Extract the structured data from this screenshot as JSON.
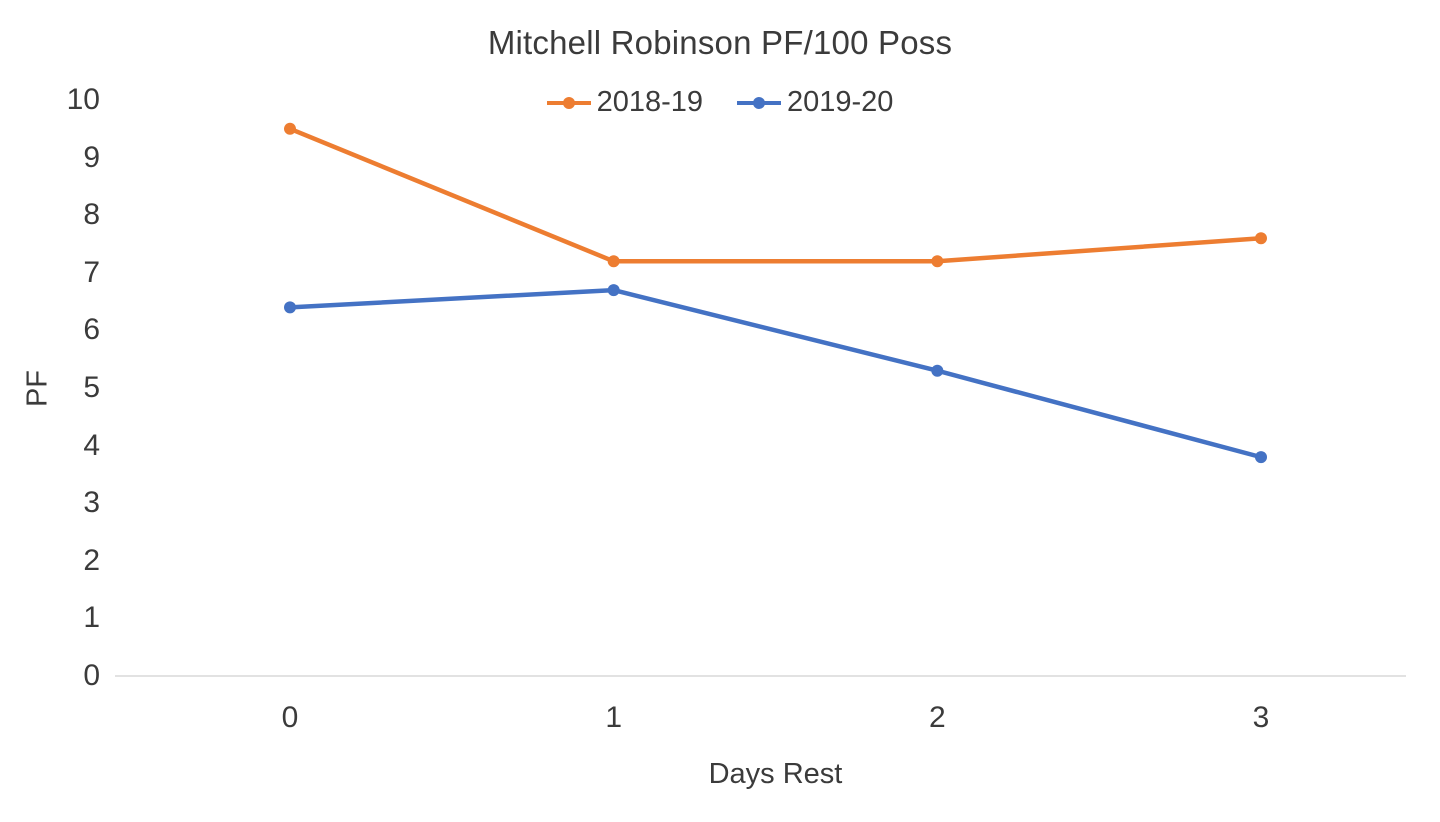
{
  "chart_data": {
    "type": "line",
    "title": "Mitchell Robinson PF/100 Poss",
    "xlabel": "Days Rest",
    "ylabel": "PF",
    "categories": [
      "0",
      "1",
      "2",
      "3"
    ],
    "series": [
      {
        "name": "2018-19",
        "color": "#ED7D31",
        "values": [
          9.5,
          7.2,
          7.2,
          7.6
        ]
      },
      {
        "name": "2019-20",
        "color": "#4472C4",
        "values": [
          6.4,
          6.7,
          5.3,
          3.8
        ]
      }
    ],
    "ylim": [
      0,
      10
    ],
    "y_tick_step": 1,
    "grid": false,
    "legend_position": "top",
    "axis_color": "#D9D9D9",
    "text_color": "#3b3b3b"
  }
}
